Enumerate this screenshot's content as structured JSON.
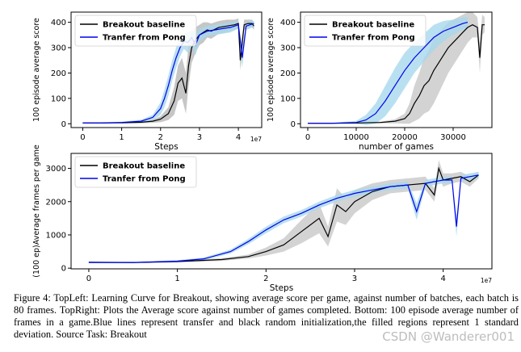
{
  "chart_data": [
    {
      "type": "line",
      "id": "topleft",
      "xlabel": "Steps",
      "ylabel": "100 episode average score",
      "x_offset_label": "1e7",
      "xlim": [
        -0.3,
        4.6
      ],
      "ylim": [
        -15,
        440
      ],
      "xticks": [
        0,
        1,
        2,
        3,
        4
      ],
      "yticks": [
        0,
        100,
        200,
        300,
        400
      ],
      "legend": "upper-left",
      "series": [
        {
          "name": "Breakout baseline",
          "color": "#000000",
          "band_color": "#b8b8b8",
          "x": [
            0,
            0.5,
            1.0,
            1.5,
            1.8,
            2.0,
            2.2,
            2.35,
            2.45,
            2.55,
            2.65,
            2.72,
            2.8,
            2.9,
            3.0,
            3.1,
            3.2,
            3.3,
            3.5,
            3.7,
            3.9,
            4.0,
            4.05,
            4.15,
            4.25,
            4.35,
            4.4
          ],
          "y": [
            3,
            3,
            4,
            6,
            10,
            18,
            40,
            90,
            160,
            180,
            120,
            230,
            300,
            330,
            350,
            360,
            370,
            365,
            380,
            385,
            390,
            395,
            250,
            390,
            395,
            395,
            385
          ],
          "band": [
            2,
            2,
            3,
            4,
            6,
            12,
            25,
            55,
            70,
            80,
            80,
            80,
            60,
            50,
            40,
            40,
            30,
            30,
            25,
            25,
            20,
            20,
            40,
            20,
            15,
            15,
            15
          ]
        },
        {
          "name": "Tranfer from Pong",
          "color": "#0000ee",
          "band_color": "#a7d8ec",
          "x": [
            0,
            0.5,
            1.0,
            1.5,
            1.8,
            2.0,
            2.1,
            2.2,
            2.3,
            2.4,
            2.5,
            2.6,
            2.7,
            2.8,
            2.9,
            3.0,
            3.2,
            3.4,
            3.6,
            3.8,
            4.0,
            4.1,
            4.2,
            4.3,
            4.4
          ],
          "y": [
            3,
            3,
            5,
            10,
            25,
            60,
            100,
            150,
            210,
            260,
            300,
            325,
            320,
            340,
            310,
            350,
            365,
            370,
            375,
            380,
            390,
            260,
            385,
            390,
            395
          ],
          "band": [
            2,
            2,
            3,
            6,
            10,
            25,
            35,
            40,
            40,
            40,
            35,
            30,
            40,
            30,
            40,
            25,
            20,
            20,
            20,
            20,
            15,
            40,
            15,
            15,
            10
          ]
        }
      ]
    },
    {
      "type": "line",
      "id": "topright",
      "xlabel": "number of games",
      "ylabel": "100 episode average score",
      "xlim": [
        -1500,
        38000
      ],
      "ylim": [
        -15,
        440
      ],
      "xticks": [
        0,
        10000,
        20000,
        30000
      ],
      "yticks": [
        0,
        100,
        200,
        300,
        400
      ],
      "legend": "upper-left",
      "series": [
        {
          "name": "Breakout baseline",
          "color": "#000000",
          "band_color": "#c8c8c8",
          "x": [
            0,
            5000,
            10000,
            15000,
            18000,
            20000,
            21000,
            22000,
            23000,
            24000,
            25000,
            26000,
            27000,
            28000,
            29000,
            30000,
            31000,
            32000,
            33000,
            34000,
            35000,
            35500,
            36000,
            36500
          ],
          "y": [
            2,
            2,
            3,
            5,
            10,
            20,
            40,
            80,
            110,
            150,
            170,
            210,
            240,
            270,
            300,
            320,
            340,
            360,
            380,
            390,
            380,
            260,
            390,
            390
          ],
          "band": [
            1,
            2,
            2,
            3,
            8,
            20,
            40,
            70,
            90,
            110,
            120,
            130,
            120,
            110,
            100,
            90,
            80,
            70,
            60,
            50,
            40,
            60,
            40,
            30
          ]
        },
        {
          "name": "Tranfer from Pong",
          "color": "#0000ee",
          "band_color": "#a7d8ec",
          "x": [
            0,
            5000,
            10000,
            12000,
            14000,
            16000,
            18000,
            20000,
            22000,
            24000,
            26000,
            28000,
            30000,
            32000,
            33000
          ],
          "y": [
            2,
            2,
            5,
            15,
            40,
            90,
            150,
            210,
            260,
            300,
            340,
            365,
            380,
            395,
            400
          ],
          "band": [
            1,
            2,
            6,
            20,
            40,
            60,
            70,
            70,
            60,
            55,
            50,
            40,
            30,
            25,
            20
          ]
        }
      ]
    },
    {
      "type": "line",
      "id": "bottom",
      "xlabel": "Steps",
      "ylabel": "(100 ep)Average frames per game",
      "x_offset_label": "1e7",
      "xlim": [
        -0.2,
        4.55
      ],
      "ylim": [
        -20,
        3450
      ],
      "xticks": [
        0,
        1,
        2,
        3,
        4
      ],
      "yticks": [
        0,
        1000,
        2000,
        3000
      ],
      "legend": "upper-left",
      "series": [
        {
          "name": "Breakout baseline",
          "color": "#000000",
          "band_color": "#c8c8c8",
          "x": [
            0,
            0.5,
            1.0,
            1.5,
            1.8,
            2.0,
            2.2,
            2.4,
            2.6,
            2.7,
            2.8,
            2.9,
            3.0,
            3.2,
            3.4,
            3.6,
            3.8,
            3.9,
            3.95,
            4.0,
            4.1,
            4.2,
            4.3,
            4.4
          ],
          "y": [
            180,
            170,
            200,
            260,
            350,
            500,
            700,
            1100,
            1500,
            950,
            1900,
            1700,
            2000,
            2300,
            2450,
            2500,
            2550,
            2200,
            3000,
            2650,
            2700,
            2750,
            2600,
            2800
          ],
          "band": [
            20,
            20,
            30,
            40,
            60,
            120,
            200,
            350,
            450,
            300,
            500,
            400,
            350,
            250,
            200,
            200,
            200,
            200,
            250,
            200,
            150,
            150,
            150,
            100
          ]
        },
        {
          "name": "Tranfer from Pong",
          "color": "#0000ee",
          "band_color": "#a7d8ec",
          "x": [
            0,
            0.5,
            1.0,
            1.3,
            1.6,
            1.8,
            2.0,
            2.2,
            2.4,
            2.6,
            2.8,
            3.0,
            3.2,
            3.4,
            3.6,
            3.7,
            3.8,
            3.9,
            4.0,
            4.1,
            4.15,
            4.2,
            4.3,
            4.4
          ],
          "y": [
            170,
            170,
            210,
            280,
            500,
            800,
            1150,
            1450,
            1650,
            1900,
            2100,
            2250,
            2350,
            2450,
            2500,
            1700,
            2550,
            2600,
            2650,
            2650,
            1250,
            2700,
            2750,
            2800
          ],
          "band": [
            20,
            20,
            30,
            40,
            60,
            80,
            100,
            100,
            100,
            100,
            100,
            100,
            100,
            100,
            100,
            250,
            100,
            100,
            100,
            100,
            300,
            100,
            100,
            100
          ]
        }
      ]
    }
  ],
  "caption": "Figure 4: TopLeft: Learning Curve for Breakout, showing average score per game, against number of batches, each batch is 80 frames. TopRight: Plots the Average score against number of games completed. Bottom: 100 episode average number of frames in a game.Blue lines represent transfer and black random initialization,the filled regions represent 1 standard deviation. Source Task: Breakout",
  "watermark": "CSDN @Wanderer001"
}
